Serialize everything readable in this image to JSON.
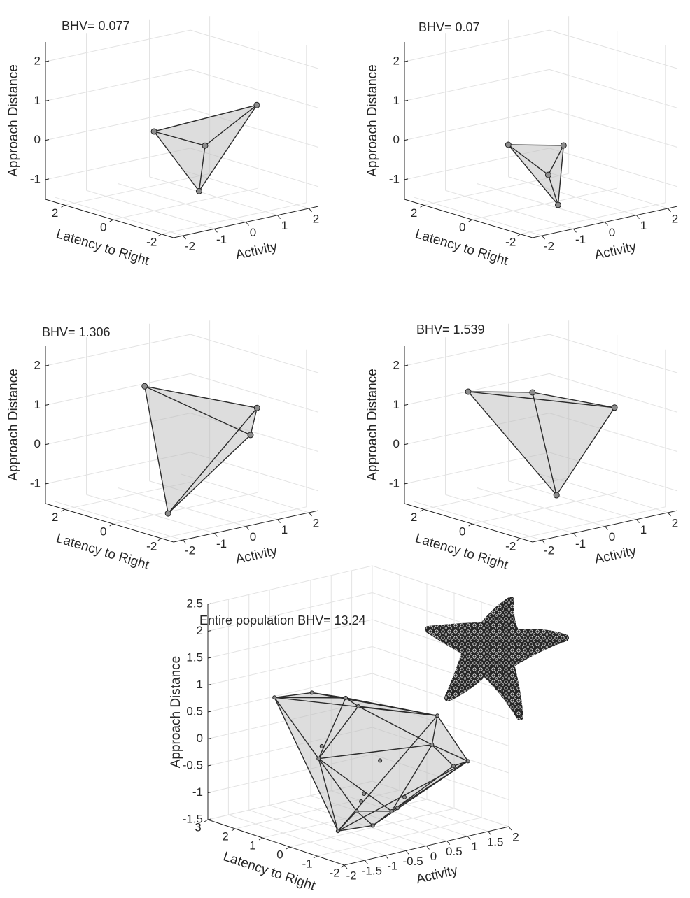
{
  "chart_data": [
    {
      "type": "scatter3d",
      "title": "BHV= 0.077",
      "xlabel": "Activity",
      "ylabel": "Latency to Right",
      "zlabel": "Approach Distance",
      "x": [
        -0.48,
        1.97,
        0.94,
        -0.27
      ],
      "y": [
        0.68,
        -0.38,
        0.42,
        -0.91
      ],
      "z": [
        0.3,
        0.74,
        -0.26,
        -0.96
      ],
      "xlim": [
        -2.3,
        2.3
      ],
      "ylim": [
        -2.5,
        2.8
      ],
      "zlim": [
        -1.5,
        2.5
      ],
      "xticks": [
        -2,
        -1,
        0,
        1,
        2
      ],
      "yticks": [
        -2,
        0,
        2
      ],
      "zticks": [
        -1,
        0,
        1,
        2
      ],
      "grid": true,
      "hull": true,
      "color": "#bdbdbd"
    },
    {
      "type": "scatter3d",
      "title": "BHV= 0.07",
      "xlabel": "Activity",
      "ylabel": "Latency to Right",
      "zlabel": "Approach Distance",
      "x": [
        -0.83,
        0.51,
        0.64,
        -0.27
      ],
      "y": [
        0.42,
        -0.12,
        0.68,
        -0.91
      ],
      "z": [
        0.07,
        -0.08,
        -1.0,
        -1.31
      ],
      "xlim": [
        -2.3,
        2.3
      ],
      "ylim": [
        -2.5,
        2.8
      ],
      "zlim": [
        -1.5,
        2.5
      ],
      "xticks": [
        -2,
        -1,
        0,
        1,
        2
      ],
      "yticks": [
        -2,
        0,
        2
      ],
      "zticks": [
        -1,
        0,
        1,
        2
      ],
      "grid": true,
      "hull": true,
      "color": "#bdbdbd"
    },
    {
      "type": "scatter3d",
      "title": "BHV= 1.306",
      "xlabel": "Activity",
      "ylabel": "Latency to Right",
      "zlabel": "Approach Distance",
      "x": [
        -0.37,
        1.77,
        1.97,
        -1.66
      ],
      "y": [
        1.21,
        -0.65,
        -0.12,
        -1.44
      ],
      "z": [
        1.44,
        0.86,
        0.04,
        -1.08
      ],
      "xlim": [
        -2.3,
        2.3
      ],
      "ylim": [
        -2.5,
        2.8
      ],
      "zlim": [
        -1.5,
        2.5
      ],
      "xticks": [
        -2,
        -1,
        0,
        1,
        2
      ],
      "yticks": [
        -2,
        0,
        2
      ],
      "zticks": [
        -1,
        0,
        1,
        2
      ],
      "grid": true,
      "hull": true,
      "color": "#bdbdbd"
    },
    {
      "type": "scatter3d",
      "title": "BHV= 1.539",
      "xlabel": "Activity",
      "ylabel": "Latency to Right",
      "zlabel": "Approach Distance",
      "x": [
        -1.09,
        0.75,
        1.93,
        -0.12
      ],
      "y": [
        1.74,
        1.48,
        -0.38,
        -0.65
      ],
      "z": [
        1.33,
        1.04,
        0.79,
        -1.03
      ],
      "xlim": [
        -2.3,
        2.3
      ],
      "ylim": [
        -2.5,
        2.8
      ],
      "zlim": [
        -1.5,
        2.5
      ],
      "xticks": [
        -2,
        -1,
        0,
        1,
        2
      ],
      "yticks": [
        -2,
        0,
        2
      ],
      "zticks": [
        -1,
        0,
        1,
        2
      ],
      "grid": true,
      "hull": true,
      "color": "#bdbdbd"
    },
    {
      "type": "scatter3d",
      "title": "Entire population BHV= 13.24",
      "xlabel": "Activity",
      "ylabel": "Latency to Right",
      "zlabel": "Approach Distance",
      "x": [
        -0.38,
        0.2,
        0.69,
        0.83,
        1.26,
        1.46,
        1.34,
        1.32,
        0.46,
        0.29,
        -0.31,
        -1.16,
        -0.04,
        0.03,
        -0.06,
        0.53,
        0.14,
        0.07,
        0.48
      ],
      "y": [
        3,
        2.5,
        2,
        1.75,
        -0.5,
        0,
        -1.5,
        -1,
        -0.5,
        -0.5,
        -0.5,
        -0.5,
        0.5,
        2,
        1.75,
        0.5,
        0.5,
        0.5,
        0
      ],
      "z": [
        0.48,
        0.55,
        0.45,
        0.31,
        0.44,
        -0.22,
        -0.25,
        -0.42,
        -0.93,
        -1.1,
        -1.32,
        -1.27,
        -1.27,
        -0.56,
        -0.27,
        -0.43,
        -0.98,
        -1.11,
        -1.28
      ],
      "xlim": [
        -2,
        2
      ],
      "ylim": [
        -2,
        3
      ],
      "zlim": [
        -1.5,
        2.5
      ],
      "xticks": [
        -2,
        -1.5,
        -1,
        -0.5,
        0,
        0.5,
        1,
        1.5,
        2
      ],
      "yticks": [
        -2,
        -1,
        0,
        1,
        2,
        3
      ],
      "zticks": [
        -1.5,
        -1,
        -0.5,
        0,
        0.5,
        1,
        1.5,
        2,
        2.5
      ],
      "grid": true,
      "hull": true,
      "color": "#bdbdbd"
    }
  ]
}
